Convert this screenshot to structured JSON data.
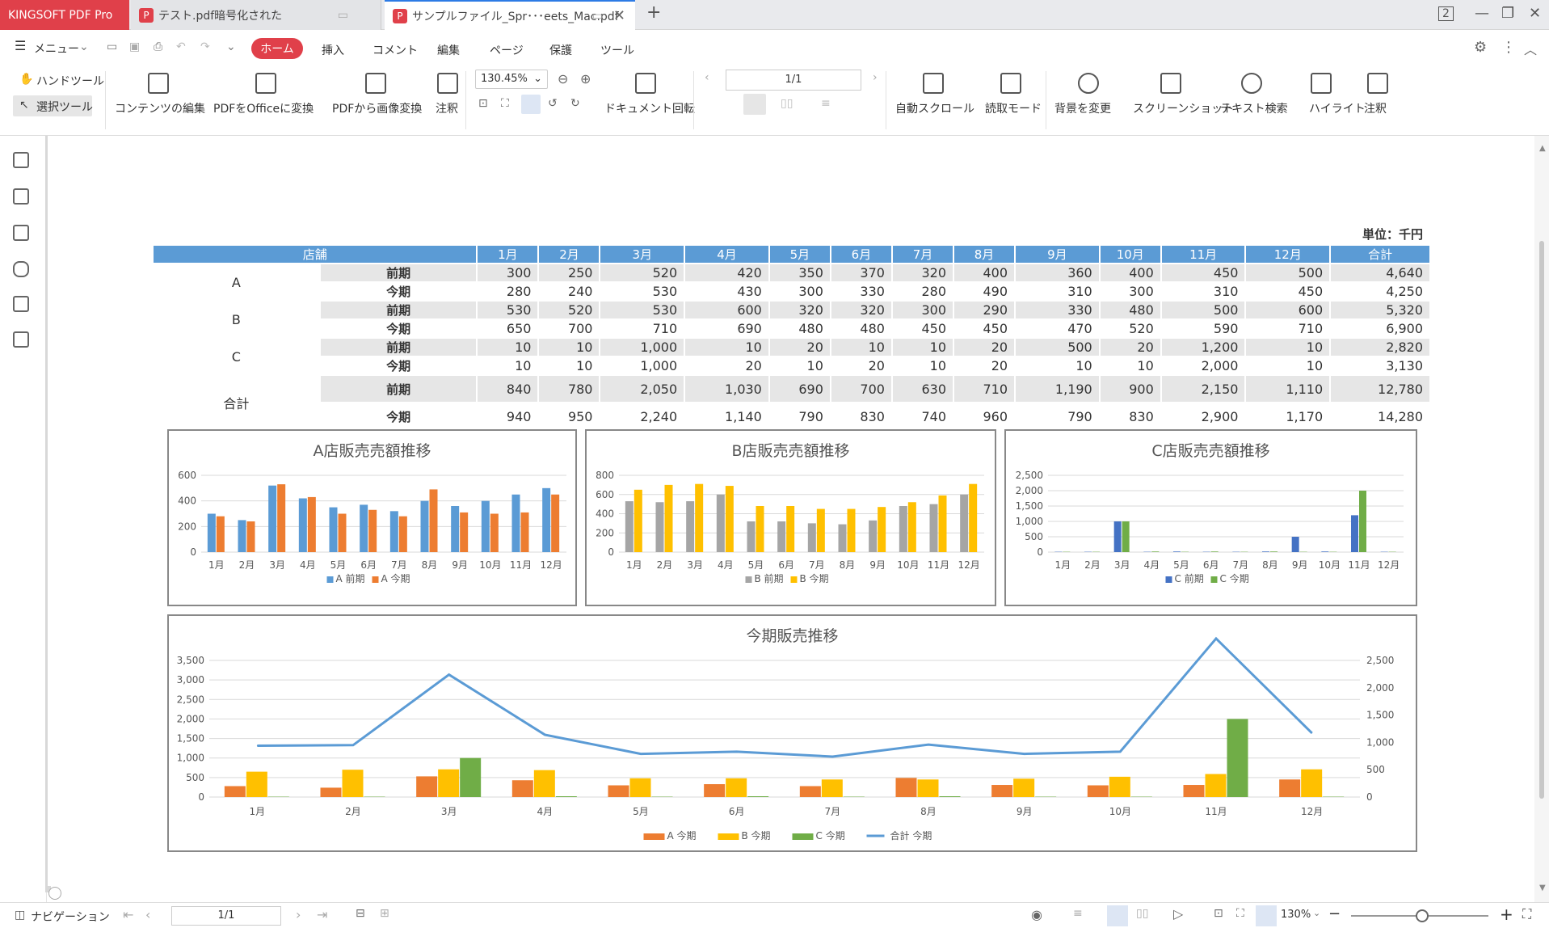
{
  "tabs": {
    "brand": "KINGSOFT PDF Pro",
    "tab1": "テスト.pdf暗号化された",
    "tab2": "サンプルファイル_Spr･･･eets_Mac.pdf"
  },
  "menu": {
    "menu": "メニュー",
    "home": "ホーム",
    "items": [
      "挿入",
      "コメント",
      "編集",
      "ページ",
      "保護",
      "ツール"
    ]
  },
  "toolbar": {
    "hand": "ハンドツール",
    "select": "選択ツール",
    "edit": "コンテンツの編集",
    "to_office": "PDFをOfficeに変換",
    "to_image": "PDFから画像変換",
    "note": "注釈",
    "zoom": "130.45%",
    "rotate": "ドキュメント回転",
    "page": "1/1",
    "autoscroll": "自動スクロール",
    "readmode": "読取モード",
    "bg": "背景を変更",
    "screenshot": "スクリーンショット",
    "textsearch": "テキスト検索",
    "highlight": "ハイライト",
    "annot": "注釈"
  },
  "status": {
    "nav": "ナビゲーション",
    "page": "1/1",
    "zoom": "130%"
  },
  "unit": "単位：千円",
  "table": {
    "header": [
      "店舗",
      "1月",
      "2月",
      "3月",
      "4月",
      "5月",
      "6月",
      "7月",
      "8月",
      "9月",
      "10月",
      "11月",
      "12月",
      "合計"
    ],
    "kinds": [
      "前期",
      "今期"
    ],
    "stores": [
      {
        "name": "A",
        "rows": [
          [
            "300",
            "250",
            "520",
            "420",
            "350",
            "370",
            "320",
            "400",
            "360",
            "400",
            "450",
            "500",
            "4,640"
          ],
          [
            "280",
            "240",
            "530",
            "430",
            "300",
            "330",
            "280",
            "490",
            "310",
            "300",
            "310",
            "450",
            "4,250"
          ]
        ]
      },
      {
        "name": "B",
        "rows": [
          [
            "530",
            "520",
            "530",
            "600",
            "320",
            "320",
            "300",
            "290",
            "330",
            "480",
            "500",
            "600",
            "5,320"
          ],
          [
            "650",
            "700",
            "710",
            "690",
            "480",
            "480",
            "450",
            "450",
            "470",
            "520",
            "590",
            "710",
            "6,900"
          ]
        ]
      },
      {
        "name": "C",
        "rows": [
          [
            "10",
            "10",
            "1,000",
            "10",
            "20",
            "10",
            "10",
            "20",
            "500",
            "20",
            "1,200",
            "10",
            "2,820"
          ],
          [
            "10",
            "10",
            "1,000",
            "20",
            "10",
            "20",
            "10",
            "20",
            "10",
            "10",
            "2,000",
            "10",
            "3,130"
          ]
        ]
      },
      {
        "name": "合計",
        "rows": [
          [
            "840",
            "780",
            "2,050",
            "1,030",
            "690",
            "700",
            "630",
            "710",
            "1,190",
            "900",
            "2,150",
            "1,110",
            "12,780"
          ],
          [
            "940",
            "950",
            "2,240",
            "1,140",
            "790",
            "830",
            "740",
            "960",
            "790",
            "830",
            "2,900",
            "1,170",
            "14,280"
          ]
        ]
      }
    ]
  },
  "chart_data": [
    {
      "type": "bar",
      "title": "A店販売売額推移",
      "categories": [
        "1月",
        "2月",
        "3月",
        "4月",
        "5月",
        "6月",
        "7月",
        "8月",
        "9月",
        "10月",
        "11月",
        "12月"
      ],
      "ylim": [
        0,
        600
      ],
      "yticks": [
        "0",
        "200",
        "400",
        "600"
      ],
      "series": [
        {
          "name": "A 前期",
          "color": "#5b9bd5",
          "values": [
            300,
            250,
            520,
            420,
            350,
            370,
            320,
            400,
            360,
            400,
            450,
            500
          ]
        },
        {
          "name": "A 今期",
          "color": "#ed7d31",
          "values": [
            280,
            240,
            530,
            430,
            300,
            330,
            280,
            490,
            310,
            300,
            310,
            450
          ]
        }
      ]
    },
    {
      "type": "bar",
      "title": "B店販売売額推移",
      "categories": [
        "1月",
        "2月",
        "3月",
        "4月",
        "5月",
        "6月",
        "7月",
        "8月",
        "9月",
        "10月",
        "11月",
        "12月"
      ],
      "ylim": [
        0,
        800
      ],
      "yticks": [
        "0",
        "200",
        "400",
        "600",
        "800"
      ],
      "series": [
        {
          "name": "B 前期",
          "color": "#a5a5a5",
          "values": [
            530,
            520,
            530,
            600,
            320,
            320,
            300,
            290,
            330,
            480,
            500,
            600
          ]
        },
        {
          "name": "B 今期",
          "color": "#ffc000",
          "values": [
            650,
            700,
            710,
            690,
            480,
            480,
            450,
            450,
            470,
            520,
            590,
            710
          ]
        }
      ]
    },
    {
      "type": "bar",
      "title": "C店販売売額推移",
      "categories": [
        "1月",
        "2月",
        "3月",
        "4月",
        "5月",
        "6月",
        "7月",
        "8月",
        "9月",
        "10月",
        "11月",
        "12月"
      ],
      "ylim": [
        0,
        2500
      ],
      "yticks": [
        "0",
        "500",
        "1,000",
        "1,500",
        "2,000",
        "2,500"
      ],
      "series": [
        {
          "name": "C 前期",
          "color": "#4472c4",
          "values": [
            10,
            10,
            1000,
            10,
            20,
            10,
            10,
            20,
            500,
            20,
            1200,
            10
          ]
        },
        {
          "name": "C 今期",
          "color": "#70ad47",
          "values": [
            10,
            10,
            1000,
            20,
            10,
            20,
            10,
            20,
            10,
            10,
            2000,
            10
          ]
        }
      ]
    },
    {
      "type": "bar",
      "title": "今期販売推移",
      "categories": [
        "1月",
        "2月",
        "3月",
        "4月",
        "5月",
        "6月",
        "7月",
        "8月",
        "9月",
        "10月",
        "11月",
        "12月"
      ],
      "ylim": [
        0,
        3500
      ],
      "yticks": [
        "0",
        "500",
        "1,000",
        "1,500",
        "2,000",
        "2,500",
        "3,000",
        "3,500"
      ],
      "y2ticks": [
        "0",
        "500",
        "1,000",
        "1,500",
        "2,000",
        "2,500"
      ],
      "y2lim": [
        0,
        2500
      ],
      "series": [
        {
          "name": "A 今期",
          "color": "#ed7d31",
          "values": [
            280,
            240,
            530,
            430,
            300,
            330,
            280,
            490,
            310,
            300,
            310,
            450
          ]
        },
        {
          "name": "B 今期",
          "color": "#ffc000",
          "values": [
            650,
            700,
            710,
            690,
            480,
            480,
            450,
            450,
            470,
            520,
            590,
            710
          ]
        },
        {
          "name": "C 今期",
          "color": "#70ad47",
          "values": [
            10,
            10,
            1000,
            20,
            10,
            20,
            10,
            20,
            10,
            10,
            2000,
            10
          ]
        },
        {
          "name": "合計 今期",
          "type": "line",
          "axis": "right",
          "color": "#5b9bd5",
          "values": [
            940,
            950,
            2240,
            1140,
            790,
            830,
            740,
            960,
            790,
            830,
            2900,
            1170
          ]
        }
      ]
    }
  ]
}
